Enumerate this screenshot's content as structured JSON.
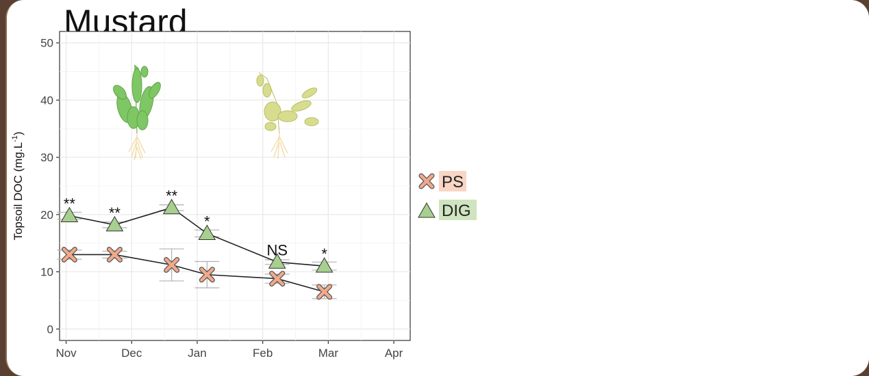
{
  "chart_data": {
    "type": "line",
    "title": "Mustard",
    "ylabel": "Topsoil DOC (mg.L-1)",
    "ylabel_parts": {
      "main": "Topsoil DOC (mg.L",
      "sup": "-1",
      "end": ")"
    },
    "xlabel": "",
    "x_ticks": [
      "Nov",
      "Dec",
      "Jan",
      "Feb",
      "Mar",
      "Apr"
    ],
    "y_ticks": [
      0,
      10,
      20,
      30,
      40,
      50
    ],
    "ylim": [
      -2,
      52
    ],
    "xlim": [
      -0.1,
      5.25
    ],
    "grid": true,
    "legend_position": "right",
    "series": [
      {
        "name": "PS",
        "marker": "cross",
        "color": "#f2a98a",
        "legend_bg": "#f8d5c4",
        "x": [
          0.05,
          0.74,
          1.61,
          2.15,
          3.22,
          3.94
        ],
        "y": [
          13.0,
          13.0,
          11.2,
          9.5,
          8.8,
          6.5
        ],
        "err": [
          0.8,
          0.6,
          2.8,
          2.3,
          0.8,
          1.2
        ]
      },
      {
        "name": "DIG",
        "marker": "triangle",
        "color": "#a7cf8e",
        "legend_bg": "#cfe4bf",
        "x": [
          0.05,
          0.74,
          1.61,
          2.15,
          3.22,
          3.94
        ],
        "y": [
          19.8,
          18.2,
          21.2,
          16.7,
          11.7,
          11.0
        ],
        "err": [
          0.6,
          0.5,
          0.5,
          0.6,
          0.4,
          0.7
        ]
      }
    ],
    "annotations": [
      "**",
      "**",
      "**",
      "*",
      "NS",
      "*"
    ],
    "images": [
      "green-mustard-plant",
      "senescent-mustard-plant"
    ]
  }
}
